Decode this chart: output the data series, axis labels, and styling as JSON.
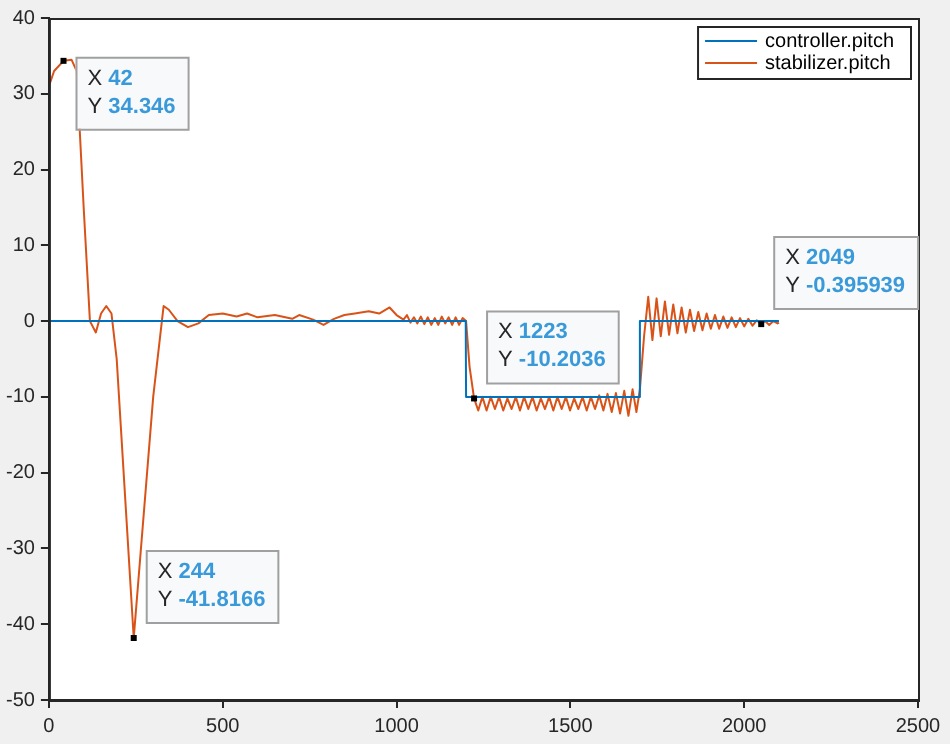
{
  "chart_data": {
    "type": "line",
    "xlim": [
      0,
      2500
    ],
    "xticks": [
      0,
      500,
      1000,
      1500,
      2000,
      2500
    ],
    "ylim": [
      -50,
      40
    ],
    "yticks": [
      -50,
      -40,
      -30,
      -20,
      -10,
      0,
      10,
      20,
      30,
      40
    ],
    "grid": false,
    "legend": "top right",
    "marker": "none",
    "line_style": "solid",
    "series": [
      {
        "name": "controller.pitch",
        "color": "#0072bd",
        "x": [
          0,
          1199,
          1200,
          1699,
          1700,
          2100
        ],
        "values": [
          0,
          0,
          -10,
          -10,
          0,
          0
        ]
      },
      {
        "name": "stabilizer.pitch",
        "color": "#d95319",
        "x": [
          0,
          15,
          42,
          65,
          80,
          100,
          118,
          135,
          150,
          165,
          180,
          195,
          244,
          300,
          330,
          345,
          370,
          400,
          430,
          460,
          500,
          540,
          570,
          600,
          650,
          700,
          720,
          760,
          790,
          820,
          850,
          880,
          920,
          950,
          980,
          1000,
          1020,
          1030,
          1040,
          1050,
          1060,
          1070,
          1080,
          1090,
          1100,
          1110,
          1120,
          1130,
          1140,
          1150,
          1160,
          1170,
          1180,
          1190,
          1200,
          1210,
          1223,
          1235,
          1247,
          1259,
          1271,
          1283,
          1295,
          1307,
          1319,
          1331,
          1343,
          1355,
          1367,
          1379,
          1391,
          1403,
          1415,
          1427,
          1439,
          1451,
          1463,
          1475,
          1487,
          1499,
          1511,
          1523,
          1535,
          1547,
          1559,
          1571,
          1583,
          1595,
          1607,
          1619,
          1631,
          1643,
          1655,
          1667,
          1679,
          1690,
          1700,
          1712,
          1724,
          1736,
          1748,
          1760,
          1772,
          1784,
          1796,
          1808,
          1820,
          1832,
          1844,
          1856,
          1868,
          1880,
          1892,
          1904,
          1916,
          1928,
          1940,
          1952,
          1964,
          1976,
          1988,
          2000,
          2012,
          2024,
          2036,
          2049,
          2060,
          2072,
          2084,
          2096,
          2100
        ],
        "values": [
          31,
          33,
          34.346,
          34.5,
          33,
          15,
          0,
          -1.5,
          1,
          2,
          1,
          -5,
          -41.8166,
          -10,
          2,
          1.5,
          0,
          -0.8,
          -0.3,
          0.8,
          1,
          0.6,
          1,
          0.5,
          0.8,
          0.3,
          0.8,
          0.2,
          -0.5,
          0.3,
          0.8,
          1,
          1.3,
          1,
          1.8,
          0.8,
          0.2,
          0.8,
          -0.2,
          0.5,
          -0.3,
          0.6,
          -0.4,
          0.5,
          -0.5,
          0.4,
          -0.5,
          0.6,
          -0.3,
          0.5,
          -0.5,
          0.5,
          -0.5,
          0.4,
          0,
          -6,
          -10.2036,
          -11.8,
          -10,
          -11.8,
          -10,
          -11.6,
          -10,
          -11.8,
          -10.2,
          -11.6,
          -10,
          -11.8,
          -10,
          -11.6,
          -10,
          -11.8,
          -10.2,
          -11.6,
          -10,
          -11.8,
          -10,
          -11.6,
          -10,
          -11.8,
          -10.2,
          -11.6,
          -10,
          -11.8,
          -10,
          -11.6,
          -9.8,
          -11.8,
          -9.6,
          -12,
          -9.5,
          -12.2,
          -9.2,
          -12.5,
          -9,
          -12,
          -9,
          -2,
          3.2,
          -2.5,
          3,
          -2,
          2.6,
          -1.8,
          2.2,
          -1.6,
          1.8,
          -1.5,
          1.5,
          -1.3,
          1.2,
          -1.2,
          1,
          -1,
          0.8,
          -1,
          0.6,
          -0.9,
          0.5,
          -0.8,
          0.4,
          -0.7,
          0.3,
          -0.6,
          0.1,
          -0.395939,
          0,
          -0.5,
          0,
          -0.3,
          -0.2
        ]
      }
    ],
    "annotations": [
      {
        "text": "X 42\nY 34.346",
        "x": 42,
        "y": 34.346
      },
      {
        "text": "X 244\nY -41.8166",
        "x": 244,
        "y": -41.8166
      },
      {
        "text": "X 1223\nY -10.2036",
        "x": 1223,
        "y": -10.2036
      },
      {
        "text": "X 2049\nY -0.395939",
        "x": 2049,
        "y": -0.395939
      }
    ]
  }
}
